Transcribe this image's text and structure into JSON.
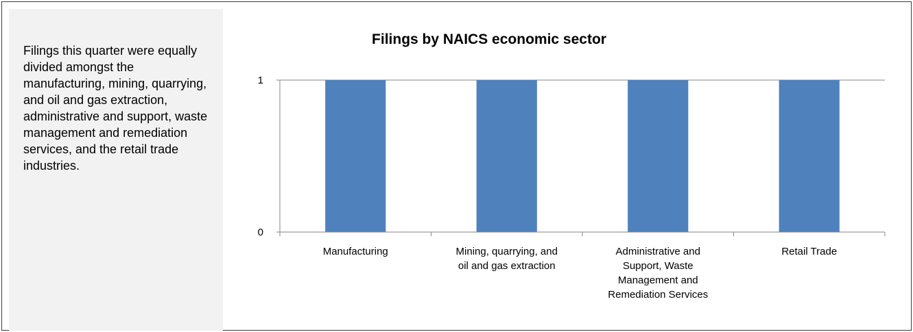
{
  "panel": {
    "text": "Filings this quarter were equally divided amongst the manufacturing, mining, quarrying, and oil and gas extraction, administrative and support, waste management and remediation services, and the retail trade industries."
  },
  "chart_data": {
    "type": "bar",
    "title": "Filings by NAICS economic sector",
    "xlabel": "",
    "ylabel": "",
    "categories": [
      [
        "Manufacturing"
      ],
      [
        "Mining, quarrying, and",
        "oil and gas extraction"
      ],
      [
        "Administrative and",
        "Support, Waste",
        "Management and",
        "Remediation Services"
      ],
      [
        "Retail Trade"
      ]
    ],
    "values": [
      1,
      1,
      1,
      1
    ],
    "ylim": [
      0,
      1
    ],
    "yticks": [
      "0",
      "1"
    ],
    "grid": true,
    "legend": "none",
    "bar_color": "#4f81bd"
  }
}
